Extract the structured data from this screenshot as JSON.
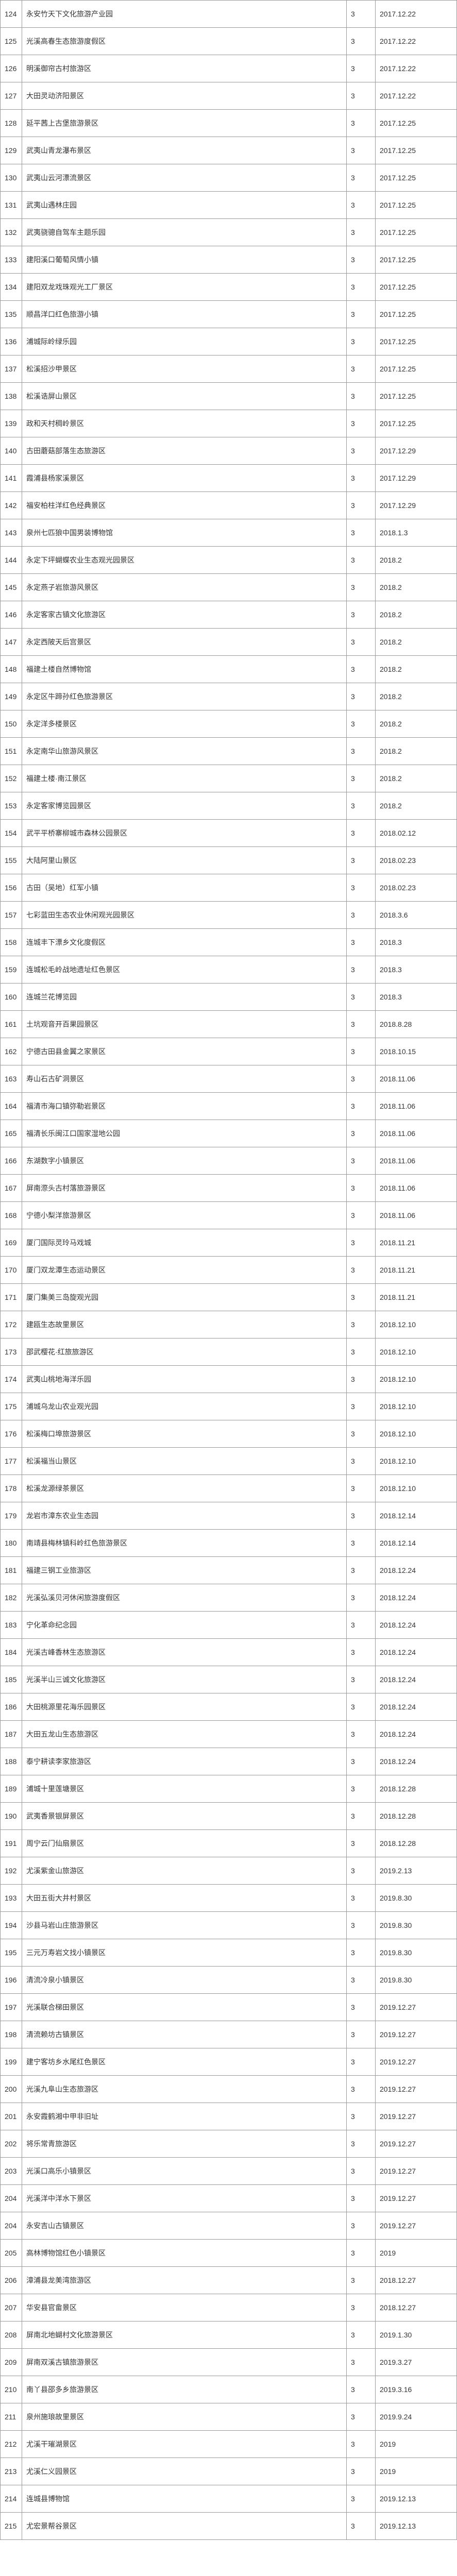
{
  "table": {
    "columns": [
      "index",
      "name",
      "level",
      "date"
    ],
    "border_color": "#999999",
    "text_color": "#333333",
    "background_color": "#ffffff",
    "font_size": 14,
    "rows": [
      {
        "index": "124",
        "name": "永安竹天下文化旅游产业园",
        "level": "3",
        "date": "2017.12.22"
      },
      {
        "index": "125",
        "name": "光溪高春生态旅游度假区",
        "level": "3",
        "date": "2017.12.22"
      },
      {
        "index": "126",
        "name": "明溪御帘古村旅游区",
        "level": "3",
        "date": "2017.12.22"
      },
      {
        "index": "127",
        "name": "大田灵动济阳景区",
        "level": "3",
        "date": "2017.12.22"
      },
      {
        "index": "128",
        "name": "延平茜上古堡旅游景区",
        "level": "3",
        "date": "2017.12.25"
      },
      {
        "index": "129",
        "name": "武夷山青龙瀑布景区",
        "level": "3",
        "date": "2017.12.25"
      },
      {
        "index": "130",
        "name": "武夷山云河漂流景区",
        "level": "3",
        "date": "2017.12.25"
      },
      {
        "index": "131",
        "name": "武夷山遇林庄园",
        "level": "3",
        "date": "2017.12.25"
      },
      {
        "index": "132",
        "name": "武夷骁骢自驾车主题乐园",
        "level": "3",
        "date": "2017.12.25"
      },
      {
        "index": "133",
        "name": "建阳溪口葡萄风情小镇",
        "level": "3",
        "date": "2017.12.25"
      },
      {
        "index": "134",
        "name": "建阳双龙戏珠观光工厂景区",
        "level": "3",
        "date": "2017.12.25"
      },
      {
        "index": "135",
        "name": "顺昌洋口红色旅游小镇",
        "level": "3",
        "date": "2017.12.25"
      },
      {
        "index": "136",
        "name": "浦城际岭绿乐园",
        "level": "3",
        "date": "2017.12.25"
      },
      {
        "index": "137",
        "name": "松溪招沙甲景区",
        "level": "3",
        "date": "2017.12.25"
      },
      {
        "index": "138",
        "name": "松溪诰屏山景区",
        "level": "3",
        "date": "2017.12.25"
      },
      {
        "index": "139",
        "name": "政和天村稠岭景区",
        "level": "3",
        "date": "2017.12.25"
      },
      {
        "index": "140",
        "name": "古田蘑菇部落生态旅游区",
        "level": "3",
        "date": "2017.12.29"
      },
      {
        "index": "141",
        "name": "霞浦县杨家溪景区",
        "level": "3",
        "date": "2017.12.29"
      },
      {
        "index": "142",
        "name": "福安柏柱洋红色经典景区",
        "level": "3",
        "date": "2017.12.29"
      },
      {
        "index": "143",
        "name": "泉州七匹狼中国男装博物馆",
        "level": "3",
        "date": "2018.1.3"
      },
      {
        "index": "144",
        "name": "永定下坪蝴蝶农业生态观光园景区",
        "level": "3",
        "date": "2018.2"
      },
      {
        "index": "145",
        "name": "永定燕子岩旅游风景区",
        "level": "3",
        "date": "2018.2"
      },
      {
        "index": "146",
        "name": "永定客家古镇文化旅游区",
        "level": "3",
        "date": "2018.2"
      },
      {
        "index": "147",
        "name": "永定西陂天后宫景区",
        "level": "3",
        "date": "2018.2"
      },
      {
        "index": "148",
        "name": "福建土楼自然博物馆",
        "level": "3",
        "date": "2018.2"
      },
      {
        "index": "149",
        "name": "永定区牛蹄孙红色旅游景区",
        "level": "3",
        "date": "2018.2"
      },
      {
        "index": "150",
        "name": "永定洋多楼景区",
        "level": "3",
        "date": "2018.2"
      },
      {
        "index": "151",
        "name": "永定南华山旅游风景区",
        "level": "3",
        "date": "2018.2"
      },
      {
        "index": "152",
        "name": "福建土楼·南江景区",
        "level": "3",
        "date": "2018.2"
      },
      {
        "index": "153",
        "name": "永定客家博览园景区",
        "level": "3",
        "date": "2018.2"
      },
      {
        "index": "154",
        "name": "武平平桥寨柳城市森林公园景区",
        "level": "3",
        "date": "2018.02.12"
      },
      {
        "index": "155",
        "name": "大陆阿里山景区",
        "level": "3",
        "date": "2018.02.23"
      },
      {
        "index": "156",
        "name": "古田（吴地）红军小镇",
        "level": "3",
        "date": "2018.02.23"
      },
      {
        "index": "157",
        "name": "七彩蓝田生态农业休闲观光园景区",
        "level": "3",
        "date": "2018.3.6"
      },
      {
        "index": "158",
        "name": "连城丰下漂乡文化度假区",
        "level": "3",
        "date": "2018.3"
      },
      {
        "index": "159",
        "name": "连城松毛岭战地遗址红色景区",
        "level": "3",
        "date": "2018.3"
      },
      {
        "index": "160",
        "name": "连城兰花博览园",
        "level": "3",
        "date": "2018.3"
      },
      {
        "index": "161",
        "name": "土坑观音开百果园景区",
        "level": "3",
        "date": "2018.8.28"
      },
      {
        "index": "162",
        "name": "宁德古田县金翼之家景区",
        "level": "3",
        "date": "2018.10.15"
      },
      {
        "index": "163",
        "name": "寿山石古矿洞景区",
        "level": "3",
        "date": "2018.11.06"
      },
      {
        "index": "164",
        "name": "福清市海口镇弥勒岩景区",
        "level": "3",
        "date": "2018.11.06"
      },
      {
        "index": "165",
        "name": "福清长乐闽江口国家湿地公园",
        "level": "3",
        "date": "2018.11.06"
      },
      {
        "index": "166",
        "name": "东湖数字小镇景区",
        "level": "3",
        "date": "2018.11.06"
      },
      {
        "index": "167",
        "name": "屏南漈头古村落旅游景区",
        "level": "3",
        "date": "2018.11.06"
      },
      {
        "index": "168",
        "name": "宁德小梨洋旅游景区",
        "level": "3",
        "date": "2018.11.06"
      },
      {
        "index": "169",
        "name": "厦门国际灵玲马戏城",
        "level": "3",
        "date": "2018.11.21"
      },
      {
        "index": "170",
        "name": "厦门双龙潭生态运动景区",
        "level": "3",
        "date": "2018.11.21"
      },
      {
        "index": "171",
        "name": "厦门集美三岛旋观光园",
        "level": "3",
        "date": "2018.11.21"
      },
      {
        "index": "172",
        "name": "建瓯生态故里景区",
        "level": "3",
        "date": "2018.12.10"
      },
      {
        "index": "173",
        "name": "邵武樱花·红旅旅游区",
        "level": "3",
        "date": "2018.12.10"
      },
      {
        "index": "174",
        "name": "武夷山桃地海洋乐园",
        "level": "3",
        "date": "2018.12.10"
      },
      {
        "index": "175",
        "name": "浦城乌龙山农业观光园",
        "level": "3",
        "date": "2018.12.10"
      },
      {
        "index": "176",
        "name": "松溪梅口埠旅游景区",
        "level": "3",
        "date": "2018.12.10"
      },
      {
        "index": "177",
        "name": "松溪福当山景区",
        "level": "3",
        "date": "2018.12.10"
      },
      {
        "index": "178",
        "name": "松溪龙源绿茶景区",
        "level": "3",
        "date": "2018.12.10"
      },
      {
        "index": "179",
        "name": "龙岩市漳东农业生态园",
        "level": "3",
        "date": "2018.12.14"
      },
      {
        "index": "180",
        "name": "南靖县梅林镇科岭红色旅游景区",
        "level": "3",
        "date": "2018.12.14"
      },
      {
        "index": "181",
        "name": "福建三钢工业旅游区",
        "level": "3",
        "date": "2018.12.24"
      },
      {
        "index": "182",
        "name": "光溪弘溪贝河休闲旅游度假区",
        "level": "3",
        "date": "2018.12.24"
      },
      {
        "index": "183",
        "name": "宁化革命纪念园",
        "level": "3",
        "date": "2018.12.24"
      },
      {
        "index": "184",
        "name": "光溪古峰香林生态旅游区",
        "level": "3",
        "date": "2018.12.24"
      },
      {
        "index": "185",
        "name": "光溪半山三诚文化旅游区",
        "level": "3",
        "date": "2018.12.24"
      },
      {
        "index": "186",
        "name": "大田桃源里花海乐园景区",
        "level": "3",
        "date": "2018.12.24"
      },
      {
        "index": "187",
        "name": "大田五龙山生态旅游区",
        "level": "3",
        "date": "2018.12.24"
      },
      {
        "index": "188",
        "name": "泰宁耕读李家旅游区",
        "level": "3",
        "date": "2018.12.24"
      },
      {
        "index": "189",
        "name": "浦城十里莲塘景区",
        "level": "3",
        "date": "2018.12.28"
      },
      {
        "index": "190",
        "name": "武夷香景银屏景区",
        "level": "3",
        "date": "2018.12.28"
      },
      {
        "index": "191",
        "name": "周宁云门仙扇景区",
        "level": "3",
        "date": "2018.12.28"
      },
      {
        "index": "192",
        "name": "尤溪紫金山旅游区",
        "level": "3",
        "date": "2019.2.13"
      },
      {
        "index": "193",
        "name": "大田五街大井村景区",
        "level": "3",
        "date": "2019.8.30"
      },
      {
        "index": "194",
        "name": "沙县马岩山庄旅游景区",
        "level": "3",
        "date": "2019.8.30"
      },
      {
        "index": "195",
        "name": "三元万寿岩文找小镇景区",
        "level": "3",
        "date": "2019.8.30"
      },
      {
        "index": "196",
        "name": "清流冷泉小镇景区",
        "level": "3",
        "date": "2019.8.30"
      },
      {
        "index": "197",
        "name": "光溪联合梯田景区",
        "level": "3",
        "date": "2019.12.27"
      },
      {
        "index": "198",
        "name": "清流赖坊古镇景区",
        "level": "3",
        "date": "2019.12.27"
      },
      {
        "index": "199",
        "name": "建宁客坊乡水尾红色景区",
        "level": "3",
        "date": "2019.12.27"
      },
      {
        "index": "200",
        "name": "光溪九阜山生态旅游区",
        "level": "3",
        "date": "2019.12.27"
      },
      {
        "index": "201",
        "name": "永安霞鹤湘中甲非旧址",
        "level": "3",
        "date": "2019.12.27"
      },
      {
        "index": "202",
        "name": "将乐常青旅游区",
        "level": "3",
        "date": "2019.12.27"
      },
      {
        "index": "203",
        "name": "光溪口高乐小镇景区",
        "level": "3",
        "date": "2019.12.27"
      },
      {
        "index": "204",
        "name": "光溪洋中洋水下景区",
        "level": "3",
        "date": "2019.12.27"
      },
      {
        "index": "204",
        "name": "永安吉山古镇景区",
        "level": "3",
        "date": "2019.12.27"
      },
      {
        "index": "205",
        "name": "高林博物馆红色小镇景区",
        "level": "3",
        "date": "2019"
      },
      {
        "index": "206",
        "name": "漳浦县龙美湾旅游区",
        "level": "3",
        "date": "2018.12.27"
      },
      {
        "index": "207",
        "name": "华安县官畲景区",
        "level": "3",
        "date": "2018.12.27"
      },
      {
        "index": "208",
        "name": "屏南北地蝴村文化旅游景区",
        "level": "3",
        "date": "2019.1.30"
      },
      {
        "index": "209",
        "name": "屏南双溪古镇旅游景区",
        "level": "3",
        "date": "2019.3.27"
      },
      {
        "index": "210",
        "name": "南丫县邵多乡旅游景区",
        "level": "3",
        "date": "2019.3.16"
      },
      {
        "index": "211",
        "name": "泉州施琅故里景区",
        "level": "3",
        "date": "2019.9.24"
      },
      {
        "index": "212",
        "name": "尤溪干璀湖景区",
        "level": "3",
        "date": "2019"
      },
      {
        "index": "213",
        "name": "尤溪仁义园景区",
        "level": "3",
        "date": "2019"
      },
      {
        "index": "214",
        "name": "连城县博物馆",
        "level": "3",
        "date": "2019.12.13"
      },
      {
        "index": "215",
        "name": "尤宏景帮谷景区",
        "level": "3",
        "date": "2019.12.13"
      }
    ]
  }
}
